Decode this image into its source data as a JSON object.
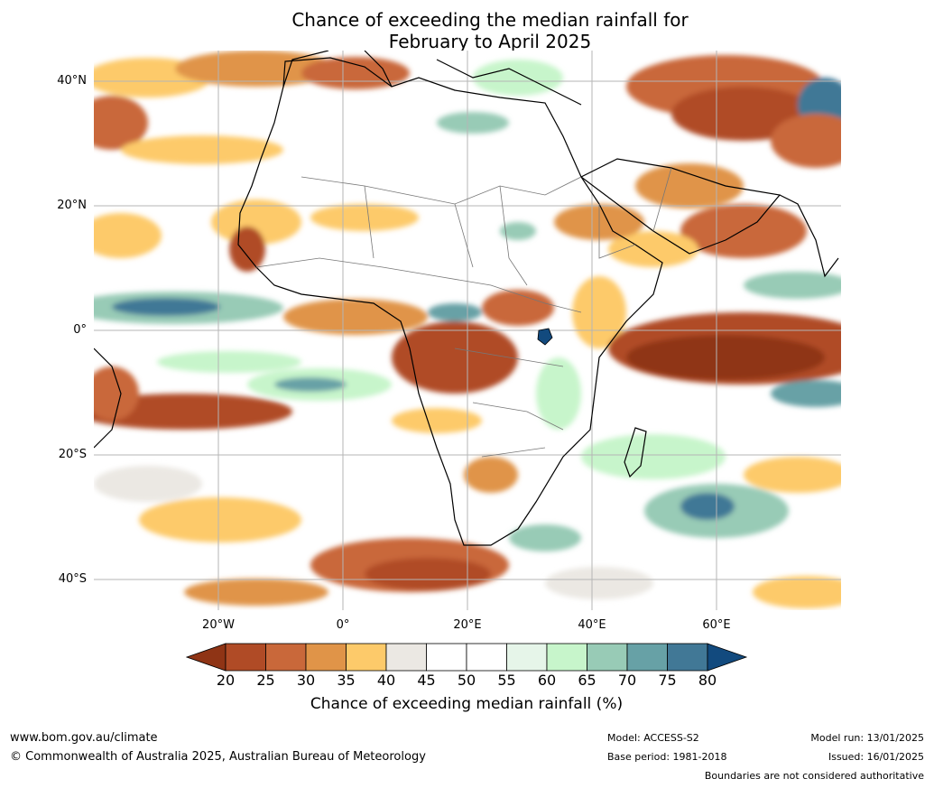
{
  "title": {
    "line1": "Chance of exceeding the median rainfall for",
    "line2": "February to April 2025"
  },
  "map": {
    "lat_labels": [
      "40°N",
      "20°N",
      "0°",
      "20°S",
      "40°S"
    ],
    "lon_labels": [
      "20°W",
      "0°",
      "20°E",
      "40°E",
      "60°E"
    ]
  },
  "colorbar": {
    "ticks": [
      "20",
      "25",
      "30",
      "35",
      "40",
      "45",
      "50",
      "55",
      "60",
      "65",
      "70",
      "75",
      "80"
    ],
    "colors": [
      "#8f3415",
      "#b04b26",
      "#c9683a",
      "#e09448",
      "#fdca6a",
      "#ebe8e3",
      "#ffffff",
      "#ffffff",
      "#e6f5e9",
      "#c7f5cb",
      "#98cbb6",
      "#67a1a6",
      "#417896",
      "#124a7e"
    ],
    "label": "Chance of exceeding median rainfall (%)"
  },
  "footer": {
    "website": "www.bom.gov.au/climate",
    "copyright": "© Commonwealth of Australia 2025, Australian Bureau of Meteorology",
    "model": "Model: ACCESS-S2",
    "base_period": "Base period: 1981-2018",
    "model_run": "Model run: 13/01/2025",
    "issued": "Issued: 16/01/2025",
    "disclaimer": "Boundaries are not considered authoritative"
  }
}
